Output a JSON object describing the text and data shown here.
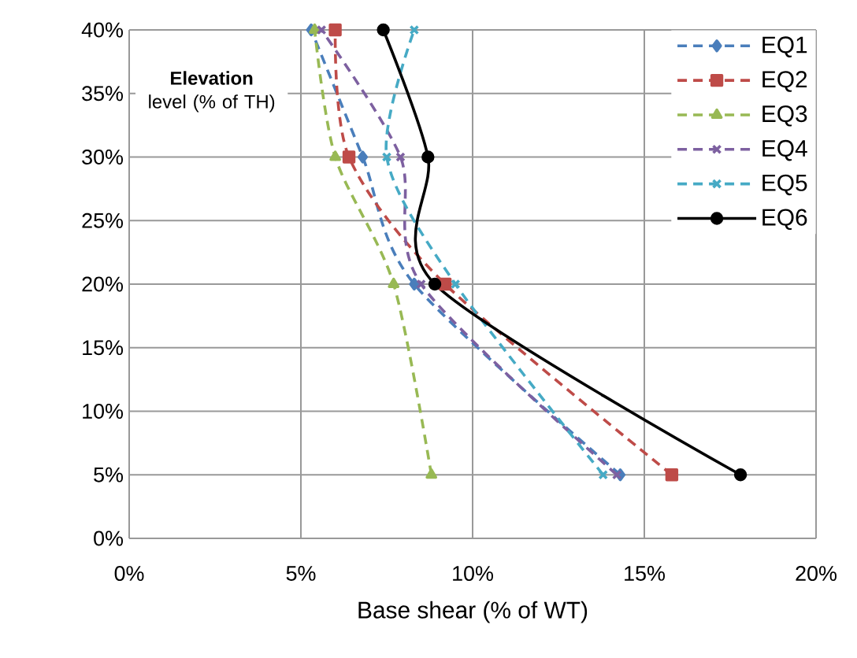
{
  "chart_data": {
    "type": "line",
    "xlabel": "Base shear (% of WT)",
    "ylabel": "**Elevation** level (% of TH)",
    "xlim": [
      0,
      20
    ],
    "ylim": [
      0,
      40
    ],
    "xticks": [
      {
        "value": 0,
        "label": "0%"
      },
      {
        "value": 5,
        "label": "5%"
      },
      {
        "value": 10,
        "label": "10%"
      },
      {
        "value": 15,
        "label": "15%"
      },
      {
        "value": 20,
        "label": "20%"
      }
    ],
    "yticks": [
      {
        "value": 0,
        "label": "0%"
      },
      {
        "value": 5,
        "label": "5%"
      },
      {
        "value": 10,
        "label": "10%"
      },
      {
        "value": 15,
        "label": "15%"
      },
      {
        "value": 20,
        "label": "20%"
      },
      {
        "value": 25,
        "label": "25%"
      },
      {
        "value": 30,
        "label": "30%"
      },
      {
        "value": 35,
        "label": "35%"
      },
      {
        "value": 40,
        "label": "40%"
      }
    ],
    "grid": true,
    "legend": "top right",
    "series": [
      {
        "name": "EQ1",
        "color": "#4a7ebb",
        "marker": "diamond",
        "line_style": "dashed",
        "x": [
          14.3,
          8.3,
          6.8,
          5.3
        ],
        "values": [
          5,
          20,
          30,
          40
        ]
      },
      {
        "name": "EQ2",
        "color": "#be4b48",
        "marker": "square",
        "line_style": "dashed",
        "x": [
          15.8,
          9.2,
          6.4,
          6.0
        ],
        "values": [
          5,
          20,
          30,
          40
        ]
      },
      {
        "name": "EQ3",
        "color": "#98b954",
        "marker": "triangle",
        "line_style": "dashed",
        "x": [
          8.8,
          7.7,
          6.0,
          5.4
        ],
        "values": [
          5,
          20,
          30,
          40
        ]
      },
      {
        "name": "EQ4",
        "color": "#7d60a0",
        "marker": "cross",
        "line_style": "dashed",
        "x": [
          14.2,
          8.5,
          7.9,
          5.6
        ],
        "values": [
          5,
          20,
          30,
          40
        ]
      },
      {
        "name": "EQ5",
        "color": "#46aac5",
        "marker": "cross",
        "line_style": "dashed",
        "x": [
          13.8,
          9.5,
          7.5,
          8.3
        ],
        "values": [
          5,
          20,
          30,
          40
        ]
      },
      {
        "name": "EQ6",
        "color": "#000000",
        "marker": "circle",
        "line_style": "solid",
        "x": [
          17.8,
          8.9,
          8.7,
          7.4
        ],
        "values": [
          5,
          20,
          30,
          40
        ]
      }
    ]
  }
}
